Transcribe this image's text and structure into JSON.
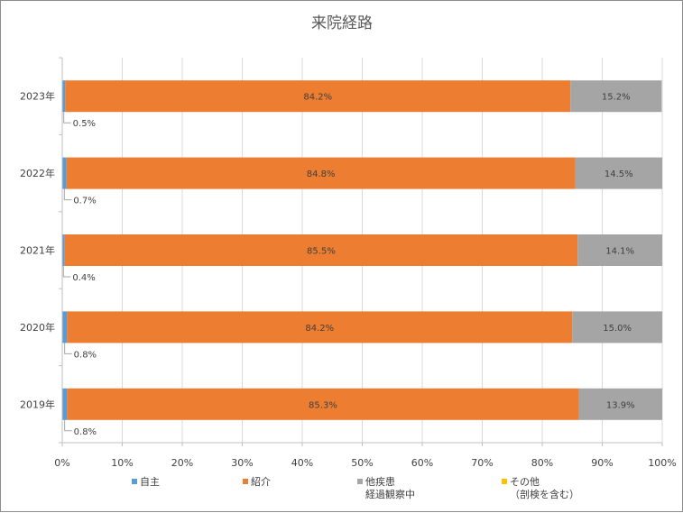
{
  "chart_data": {
    "type": "bar",
    "orientation": "horizontal",
    "stacked": true,
    "percent_stacked": true,
    "title": "来院経路",
    "categories": [
      "2023年",
      "2022年",
      "2021年",
      "2020年",
      "2019年"
    ],
    "series": [
      {
        "name": "自主",
        "color": "#5B9BD5",
        "values": [
          0.5,
          0.7,
          0.4,
          0.8,
          0.8
        ],
        "labels": [
          "0.5%",
          "0.7%",
          "0.4%",
          "0.8%",
          "0.8%"
        ]
      },
      {
        "name": "紹介",
        "color": "#ED7D31",
        "values": [
          84.2,
          84.8,
          85.5,
          84.2,
          85.3
        ],
        "labels": [
          "84.2%",
          "84.8%",
          "85.5%",
          "84.2%",
          "85.3%"
        ]
      },
      {
        "name": "他疾患経過観察中",
        "name_lines": [
          "他疾患",
          "経過観察中"
        ],
        "color": "#A5A5A5",
        "values": [
          15.2,
          14.5,
          14.1,
          15.0,
          13.9
        ],
        "labels": [
          "15.2%",
          "14.5%",
          "14.1%",
          "15.0%",
          "13.9%"
        ]
      },
      {
        "name": "その他（剖検を含む）",
        "name_lines": [
          "その他",
          "（剖検を含む）"
        ],
        "color": "#FFC000",
        "values": [
          0,
          0,
          0,
          0,
          0
        ]
      }
    ],
    "x_ticks": [
      "0%",
      "10%",
      "20%",
      "30%",
      "40%",
      "50%",
      "60%",
      "70%",
      "80%",
      "90%",
      "100%"
    ],
    "xlim": [
      0,
      100
    ],
    "grid": true,
    "legend": "bottom"
  }
}
